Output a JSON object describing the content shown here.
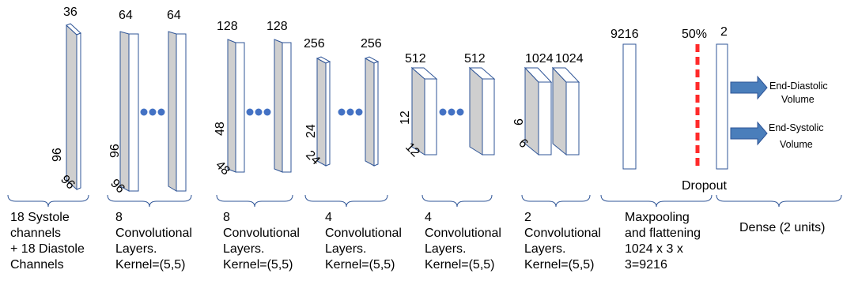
{
  "input_block": {
    "channels": "36",
    "height": "96",
    "width": "96"
  },
  "conv_groups": [
    {
      "first_channels": "64",
      "last_channels": "64",
      "height": "96",
      "width": "96",
      "ellipsis": "●●●"
    },
    {
      "first_channels": "128",
      "last_channels": "128",
      "height": "48",
      "width": "48",
      "ellipsis": "●●●"
    },
    {
      "first_channels": "256",
      "last_channels": "256",
      "height": "24",
      "width": "24",
      "ellipsis": "●●●"
    },
    {
      "first_channels": "512",
      "last_channels": "512",
      "height": "12",
      "width": "12",
      "ellipsis": "●●●"
    },
    {
      "first_channels": "1024",
      "last_channels": "1024",
      "height": "6",
      "width": "6"
    }
  ],
  "flatten_units": "9216",
  "dropout": {
    "rate": "50%",
    "label": "Dropout"
  },
  "dense_units": "2",
  "outputs": [
    {
      "line1": "End-Diastolic",
      "line2": "Volume"
    },
    {
      "line1": "End-Systolic",
      "line2": "Volume"
    }
  ],
  "captions": [
    [
      "18 Systole",
      "channels",
      "+ 18 Diastole",
      "Channels"
    ],
    [
      "8",
      "Convolutional",
      "Layers.",
      "Kernel=(5,5)"
    ],
    [
      "8",
      "Convolutional",
      "Layers.",
      "Kernel=(5,5)"
    ],
    [
      "4",
      "Convolutional",
      "Layers.",
      "Kernel=(5,5)"
    ],
    [
      "4",
      "Convolutional",
      "Layers.",
      "Kernel=(5,5)"
    ],
    [
      "2",
      "Convolutional",
      "Layers.",
      "Kernel=(5,5)"
    ],
    [
      "Maxpooling",
      "and flattening",
      "1024 x 3 x",
      "3=9216"
    ],
    [
      "Dense (2 units)"
    ]
  ],
  "colors": {
    "block_face": "#cfcfcf",
    "block_stroke": "#2f5597",
    "dots": "#4472c4",
    "arrow": "#4a7ebb",
    "dropout": "#ff2a2a"
  }
}
